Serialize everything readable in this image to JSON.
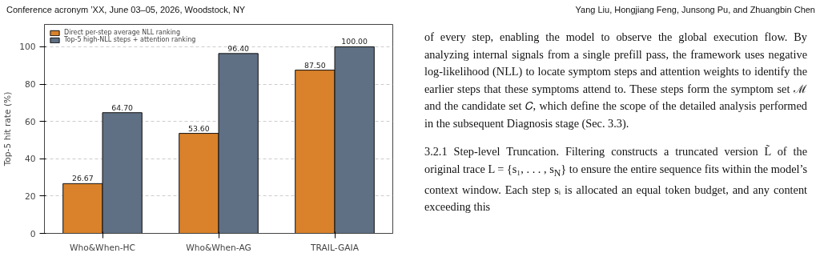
{
  "chart_data": {
    "type": "bar",
    "categories": [
      "Who&When-HC",
      "Who&When-AG",
      "TRAIL-GAIA"
    ],
    "ylabel": "Top-5 hit rate (%)",
    "ylim": [
      0,
      112
    ],
    "yticks": [
      0,
      20,
      40,
      60,
      80,
      100
    ],
    "grid": "y",
    "legend": "top left",
    "series": [
      {
        "name": "Direct per-step average NLL ranking",
        "color": "#d9822b",
        "values": [
          26.67,
          53.6,
          87.5
        ],
        "value_labels": [
          "26.67",
          "53.60",
          "87.50"
        ]
      },
      {
        "name": "Top-5 high-NLL steps + attention ranking",
        "color": "#5f6f84",
        "values": [
          64.7,
          96.4,
          100.0
        ],
        "value_labels": [
          "64.70",
          "96.40",
          "100.00"
        ]
      }
    ],
    "annotations": [
      "Conference acronym ’XX, June 03–05, 2026, Woodstock, NY",
      "Yang Liu, Hongjiang Feng, Junsong Pu, and Zhuangbin Chen",
      "of every step, enabling the model to observe the global execution flow. By analyzing internal signals from a single prefill pass, the framework uses negative log-likelihood (NLL) to locate symptom steps and attention weights to identify the earlier steps that these symptoms attend to. These steps form the symptom set ℳ and the candidate set 𝐶, which define the scope of the detailed analysis performed in the subsequent Diagnosis stage (Sec. 3.3).",
      "3.2.1 Step-level Truncation. Filtering constructs a truncated version L̃ of the original trace L = {s₁, . . . , s$_{N}$} to ensure the entire sequence fits within the model’s context window. Each step sᵢ is allocated an equal token budget, and any content exceeding this"
    ]
  }
}
